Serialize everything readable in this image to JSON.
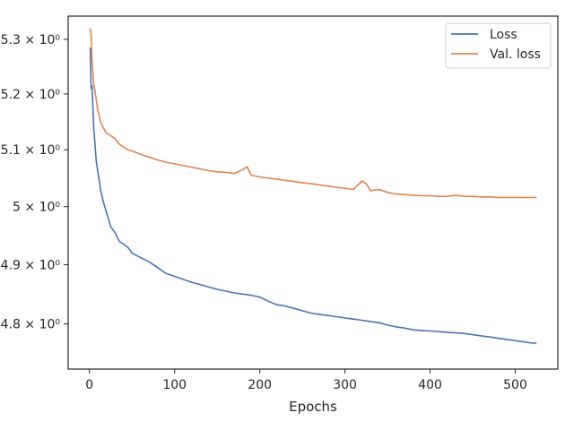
{
  "chart_data": {
    "type": "line",
    "title": "",
    "xlabel": "Epochs",
    "ylabel": "",
    "yscale": "log",
    "xlim": [
      -25,
      550
    ],
    "ylim": [
      4.725,
      5.343
    ],
    "grid": false,
    "legend_position": "top-right",
    "x_ticks": [
      0,
      100,
      200,
      300,
      400,
      500
    ],
    "y_ticks": [
      {
        "value": 4.8,
        "label": "4.8 × 10⁰"
      },
      {
        "value": 4.9,
        "label": "4.9 × 10⁰"
      },
      {
        "value": 5.0,
        "label": "5 × 10⁰"
      },
      {
        "value": 5.1,
        "label": "5.1 × 10⁰"
      },
      {
        "value": 5.2,
        "label": "5.2 × 10⁰"
      },
      {
        "value": 5.3,
        "label": "5.3 × 10⁰"
      }
    ],
    "series": [
      {
        "name": "Loss",
        "color": "#4c72b0",
        "x": [
          1,
          2,
          3,
          5,
          8,
          10,
          13,
          16,
          20,
          25,
          30,
          35,
          40,
          45,
          50,
          60,
          70,
          80,
          90,
          100,
          110,
          120,
          130,
          140,
          150,
          160,
          170,
          180,
          190,
          200,
          210,
          220,
          230,
          240,
          250,
          260,
          270,
          280,
          290,
          300,
          310,
          320,
          330,
          340,
          350,
          360,
          370,
          380,
          390,
          400,
          410,
          420,
          430,
          440,
          450,
          460,
          470,
          480,
          490,
          500,
          510,
          520,
          525
        ],
        "y": [
          5.285,
          5.21,
          5.215,
          5.14,
          5.08,
          5.06,
          5.03,
          5.01,
          4.99,
          4.965,
          4.955,
          4.94,
          4.935,
          4.93,
          4.92,
          4.912,
          4.905,
          4.895,
          4.885,
          4.88,
          4.875,
          4.87,
          4.866,
          4.862,
          4.858,
          4.855,
          4.852,
          4.85,
          4.848,
          4.845,
          4.838,
          4.832,
          4.83,
          4.826,
          4.822,
          4.818,
          4.816,
          4.814,
          4.812,
          4.81,
          4.808,
          4.806,
          4.804,
          4.802,
          4.798,
          4.795,
          4.793,
          4.79,
          4.789,
          4.788,
          4.787,
          4.786,
          4.785,
          4.784,
          4.782,
          4.78,
          4.778,
          4.776,
          4.774,
          4.772,
          4.77,
          4.768,
          4.768
        ]
      },
      {
        "name": "Val. loss",
        "color": "#dd8452",
        "x": [
          1,
          2,
          3,
          5,
          8,
          10,
          13,
          16,
          20,
          25,
          30,
          35,
          40,
          45,
          50,
          60,
          70,
          80,
          90,
          100,
          110,
          120,
          130,
          140,
          150,
          160,
          170,
          180,
          185,
          190,
          200,
          210,
          220,
          230,
          240,
          250,
          260,
          270,
          280,
          290,
          300,
          310,
          320,
          325,
          330,
          340,
          350,
          360,
          370,
          380,
          390,
          400,
          410,
          420,
          430,
          440,
          450,
          460,
          470,
          480,
          490,
          500,
          510,
          520,
          525
        ],
        "y": [
          5.32,
          5.31,
          5.26,
          5.22,
          5.19,
          5.17,
          5.15,
          5.14,
          5.13,
          5.125,
          5.12,
          5.11,
          5.105,
          5.1,
          5.098,
          5.092,
          5.087,
          5.082,
          5.078,
          5.075,
          5.072,
          5.069,
          5.066,
          5.063,
          5.061,
          5.06,
          5.058,
          5.065,
          5.07,
          5.055,
          5.052,
          5.05,
          5.048,
          5.046,
          5.044,
          5.042,
          5.04,
          5.038,
          5.036,
          5.034,
          5.032,
          5.03,
          5.045,
          5.04,
          5.028,
          5.03,
          5.025,
          5.022,
          5.021,
          5.02,
          5.019,
          5.019,
          5.018,
          5.018,
          5.02,
          5.018,
          5.018,
          5.017,
          5.017,
          5.016,
          5.016,
          5.016,
          5.016,
          5.016,
          5.016
        ]
      }
    ]
  }
}
